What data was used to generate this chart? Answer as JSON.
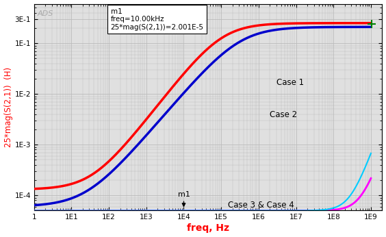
{
  "title": "",
  "xlabel": "freq, Hz",
  "ylabel": "25*mag(S(2,1))  (H)",
  "xlabel_color": "#ff0000",
  "ylabel_color": "#ff0000",
  "background_color": "#ffffff",
  "plot_bg_color": "#e0e0e0",
  "grid_color": "#bbbbbb",
  "ads_label": "ADS",
  "annotation_text": "m1\nfreq=10.00kHz\n25*mag(S(2,1))=2.001E-5",
  "case1_color": "#ff0000",
  "case2_color": "#0000cc",
  "case3_color": "#ff00ff",
  "case4_color": "#00ccff",
  "case1_label": "Case 1",
  "case2_label": "Case 2",
  "case34_label": "Case 3 & Case 4",
  "x_ticks": [
    1,
    10,
    100,
    1000,
    10000,
    100000,
    1000000,
    10000000,
    100000000,
    1000000000
  ],
  "x_labels": [
    "1",
    "1E1",
    "1E2",
    "1E3",
    "1E4",
    "1E5",
    "1E6",
    "1E7",
    "1E8",
    "1E9"
  ],
  "y_ticks": [
    0.0001,
    0.001,
    0.01,
    0.1,
    0.3
  ],
  "y_labels": [
    "1E-4",
    "1E-3",
    "1E-2",
    "1E-1",
    "3E-1"
  ],
  "ylim": [
    5e-05,
    0.6
  ],
  "xlim": [
    1,
    2000000000.0
  ]
}
